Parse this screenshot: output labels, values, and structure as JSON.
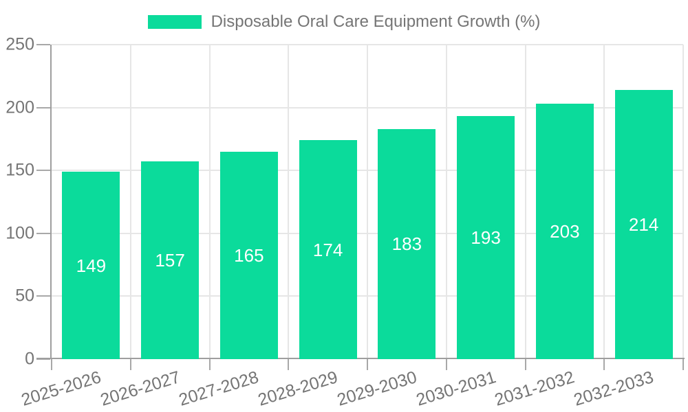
{
  "legend": {
    "label": "Disposable Oral Care Equipment Growth (%)",
    "swatch_color": "#0bdb9b"
  },
  "chart_data": {
    "type": "bar",
    "title": "Disposable Oral Care Equipment Growth (%)",
    "categories": [
      "2025-2026",
      "2026-2027",
      "2027-2028",
      "2028-2029",
      "2029-2030",
      "2030-2031",
      "2031-2032",
      "2032-2033"
    ],
    "values": [
      149,
      157,
      165,
      174,
      183,
      193,
      203,
      214
    ],
    "value_labels_shown": true,
    "xlabel": "",
    "ylabel": "",
    "ylim": [
      0,
      250
    ],
    "yticks": [
      0,
      50,
      100,
      150,
      200,
      250
    ],
    "grid": true,
    "legend_position": "top-center",
    "colors": {
      "bar": "#0bdb9b",
      "bar_label": "#ffffff",
      "axis_text": "#757575",
      "axis_line": "#9e9e9e",
      "tick": "#a8a8a8",
      "gridline": "#e6e6e6",
      "background": "#ffffff"
    }
  }
}
